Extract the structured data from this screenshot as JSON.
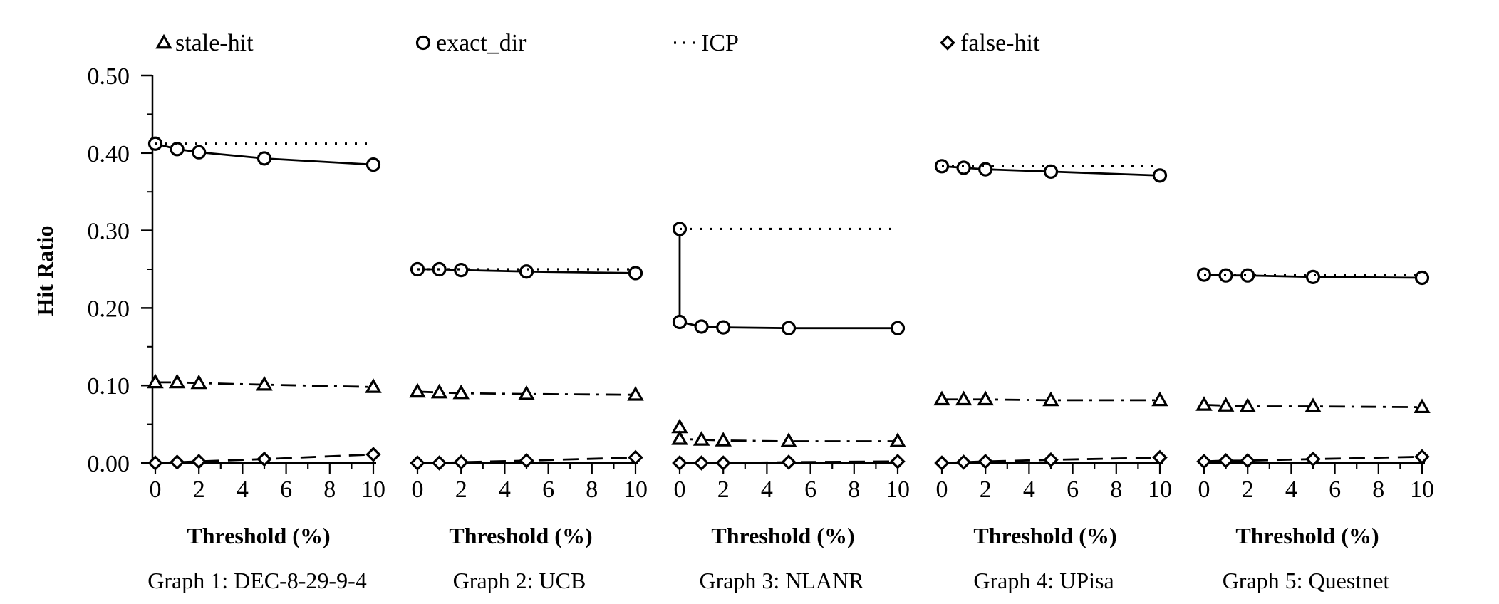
{
  "chart_data": {
    "type": "line",
    "ylabel": "Hit Ratio",
    "ylim": [
      0,
      0.5
    ],
    "y_ticks": [
      "0.00",
      "0.10",
      "0.20",
      "0.30",
      "0.40",
      "0.50"
    ],
    "x_ticks": [
      "0",
      "2",
      "4",
      "6",
      "8",
      "10"
    ],
    "xlim": [
      0,
      10
    ],
    "legend": [
      {
        "name": "stale-hit",
        "marker": "triangle",
        "style": "dash-dot"
      },
      {
        "name": "exact_dir",
        "marker": "circle",
        "style": "solid"
      },
      {
        "name": "ICP",
        "marker": "none",
        "style": "dotted"
      },
      {
        "name": "false-hit",
        "marker": "diamond",
        "style": "dashed"
      }
    ],
    "legend_placement": "top",
    "panels": [
      {
        "xlabel": "Threshold (%)",
        "caption": "Graph 1: DEC-8-29-9-4",
        "x": [
          0,
          1,
          2,
          5,
          10
        ],
        "series": [
          {
            "name": "exact_dir",
            "values": [
              0.412,
              0.405,
              0.401,
              0.393,
              0.385
            ]
          },
          {
            "name": "ICP",
            "values": [
              0.412,
              0.412,
              0.412,
              0.412,
              0.412
            ]
          },
          {
            "name": "stale-hit",
            "values": [
              0.104,
              0.104,
              0.103,
              0.101,
              0.098
            ]
          },
          {
            "name": "false-hit",
            "values": [
              0.0,
              0.001,
              0.002,
              0.005,
              0.011
            ]
          }
        ]
      },
      {
        "xlabel": "Threshold (%)",
        "caption": "Graph 2: UCB",
        "x": [
          0,
          1,
          2,
          5,
          10
        ],
        "series": [
          {
            "name": "exact_dir",
            "values": [
              0.25,
              0.25,
              0.249,
              0.247,
              0.245
            ]
          },
          {
            "name": "ICP",
            "values": [
              0.25,
              0.25,
              0.25,
              0.25,
              0.25
            ]
          },
          {
            "name": "stale-hit",
            "values": [
              0.092,
              0.091,
              0.09,
              0.089,
              0.088
            ]
          },
          {
            "name": "false-hit",
            "values": [
              0.0,
              0.0,
              0.001,
              0.003,
              0.007
            ]
          }
        ]
      },
      {
        "xlabel": "Threshold (%)",
        "caption": "Graph 3: NLANR",
        "x": [
          0,
          0,
          1,
          2,
          5,
          10
        ],
        "series": [
          {
            "name": "exact_dir",
            "values": [
              0.302,
              0.182,
              0.176,
              0.175,
              0.174,
              0.174
            ]
          },
          {
            "name": "ICP",
            "values": [
              0.302,
              0.302,
              0.302,
              0.302,
              0.302,
              0.302
            ]
          },
          {
            "name": "stale-hit",
            "values": [
              0.046,
              0.031,
              0.03,
              0.029,
              0.028,
              0.028
            ]
          },
          {
            "name": "false-hit",
            "values": [
              0.0,
              0.0,
              0.0,
              0.0,
              0.001,
              0.002
            ]
          }
        ]
      },
      {
        "xlabel": "Threshold (%)",
        "caption": "Graph 4: UPisa",
        "x": [
          0,
          1,
          2,
          5,
          10
        ],
        "series": [
          {
            "name": "exact_dir",
            "values": [
              0.383,
              0.381,
              0.379,
              0.376,
              0.371
            ]
          },
          {
            "name": "ICP",
            "values": [
              0.383,
              0.383,
              0.383,
              0.383,
              0.383
            ]
          },
          {
            "name": "stale-hit",
            "values": [
              0.082,
              0.082,
              0.082,
              0.081,
              0.081
            ]
          },
          {
            "name": "false-hit",
            "values": [
              0.0,
              0.001,
              0.002,
              0.004,
              0.007
            ]
          }
        ]
      },
      {
        "xlabel": "Threshold (%)",
        "caption": "Graph 5: Questnet",
        "x": [
          0,
          1,
          2,
          5,
          10
        ],
        "series": [
          {
            "name": "exact_dir",
            "values": [
              0.243,
              0.242,
              0.242,
              0.24,
              0.239
            ]
          },
          {
            "name": "ICP",
            "values": [
              0.243,
              0.243,
              0.243,
              0.243,
              0.243
            ]
          },
          {
            "name": "stale-hit",
            "values": [
              0.075,
              0.074,
              0.073,
              0.073,
              0.072
            ]
          },
          {
            "name": "false-hit",
            "values": [
              0.002,
              0.003,
              0.003,
              0.005,
              0.008
            ]
          }
        ]
      }
    ]
  }
}
